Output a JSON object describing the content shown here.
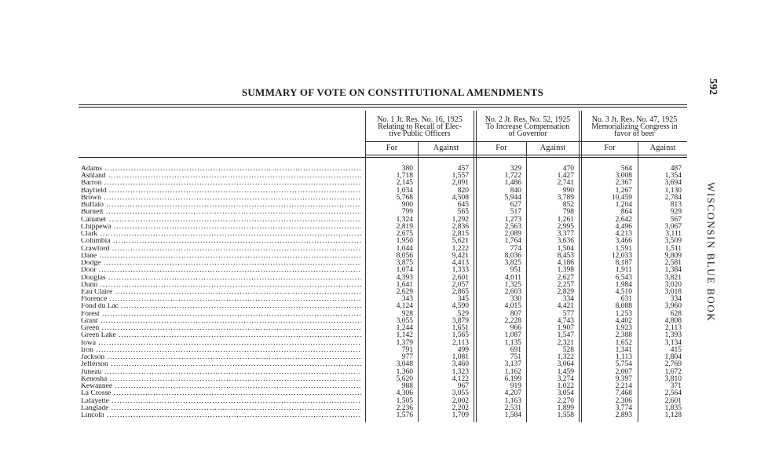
{
  "page": {
    "title": "SUMMARY OF VOTE ON CONSTITUTIONAL AMENDMENTS",
    "page_number": "592",
    "running_head": "WISCONSIN BLUE BOOK"
  },
  "table": {
    "groups": [
      {
        "lines": [
          "No. 1 Jt. Res. No. 16, 1925",
          "Relating to Recall of Elec-",
          "tive Public Officers"
        ]
      },
      {
        "lines": [
          "No. 2 Jt. Res. No. 52, 1925",
          "To Increase Compensation",
          "of Governor"
        ]
      },
      {
        "lines": [
          "No. 3 Jt. Res. No. 47, 1925",
          "Memorializing Congress in",
          "favor of beer"
        ]
      }
    ],
    "subheaders": [
      "For",
      "Against",
      "For",
      "Against",
      "For",
      "Against"
    ],
    "rows": [
      {
        "county": "Adams",
        "v": [
          "380",
          "457",
          "329",
          "470",
          "564",
          "487"
        ]
      },
      {
        "county": "Ashland",
        "v": [
          "1,718",
          "1,557",
          "1,722",
          "1,427",
          "3,008",
          "1,354"
        ]
      },
      {
        "county": "Barron",
        "v": [
          "2,145",
          "2,091",
          "1,486",
          "2,741",
          "2,367",
          "3,694"
        ]
      },
      {
        "county": "Bayfield",
        "v": [
          "1,034",
          "820",
          "840",
          "990",
          "1,267",
          "1,130"
        ]
      },
      {
        "county": "Brown",
        "v": [
          "5,768",
          "4,508",
          "5,944",
          "3,789",
          "10,459",
          "2,784"
        ]
      },
      {
        "county": "Buffalo",
        "v": [
          "900",
          "645",
          "627",
          "852",
          "1,204",
          "813"
        ]
      },
      {
        "county": "Burnett",
        "v": [
          "799",
          "565",
          "517",
          "798",
          "864",
          "929"
        ]
      },
      {
        "county": "Calumet",
        "v": [
          "1,324",
          "1,292",
          "1,273",
          "1,261",
          "2,642",
          "567"
        ]
      },
      {
        "county": "Chippewa",
        "v": [
          "2,819",
          "2,836",
          "2,563",
          "2,995",
          "4,496",
          "3,067"
        ]
      },
      {
        "county": "Clark",
        "v": [
          "2,675",
          "2,815",
          "2,089",
          "3,377",
          "4,213",
          "3,111"
        ]
      },
      {
        "county": "Columbia",
        "v": [
          "1,950",
          "5,621",
          "1,764",
          "3,636",
          "3,466",
          "3,509"
        ]
      },
      {
        "county": "Crawford",
        "v": [
          "1,044",
          "1,222",
          "774",
          "1,504",
          "1,591",
          "1,511"
        ]
      },
      {
        "county": "Dane",
        "v": [
          "8,056",
          "9,421",
          "8,036",
          "8,453",
          "12,033",
          "9,809"
        ]
      },
      {
        "county": "Dodge",
        "v": [
          "3,875",
          "4,413",
          "3,825",
          "4,186",
          "8,187",
          "2,581"
        ]
      },
      {
        "county": "Door",
        "v": [
          "1,074",
          "1,333",
          "951",
          "1,398",
          "1,911",
          "1,384"
        ]
      },
      {
        "county": "Douglas",
        "v": [
          "4,393",
          "2,601",
          "4,011",
          "2,627",
          "6,543",
          "3,821"
        ]
      },
      {
        "county": "Dunn",
        "v": [
          "1,641",
          "2,057",
          "1,325",
          "2,257",
          "1,984",
          "3,020"
        ]
      },
      {
        "county": "Eau Claire",
        "v": [
          "2,629",
          "2,865",
          "2,603",
          "2,829",
          "4,510",
          "3,018"
        ]
      },
      {
        "county": "Florence",
        "v": [
          "343",
          "345",
          "330",
          "334",
          "631",
          "334"
        ]
      },
      {
        "county": "Fond du Lac",
        "v": [
          "4,124",
          "4,590",
          "4,015",
          "4,421",
          "8,088",
          "3,960"
        ]
      },
      {
        "county": "Forest",
        "v": [
          "928",
          "529",
          "807",
          "577",
          "1,253",
          "628"
        ]
      },
      {
        "county": "Grant",
        "v": [
          "3,055",
          "3,879",
          "2,228",
          "4,743",
          "4,402",
          "4,808"
        ]
      },
      {
        "county": "Green",
        "v": [
          "1,244",
          "1,651",
          "966",
          "1,907",
          "1,923",
          "2,113"
        ]
      },
      {
        "county": "Green Lake",
        "v": [
          "1,142",
          "1,565",
          "1,087",
          "1,547",
          "2,388",
          "1,393"
        ]
      },
      {
        "county": "Iowa",
        "v": [
          "1,379",
          "2,113",
          "1,135",
          "2,321",
          "1,652",
          "3,134"
        ]
      },
      {
        "county": "Iron",
        "v": [
          "791",
          "499",
          "691",
          "528",
          "1,341",
          "415"
        ]
      },
      {
        "county": "Jackson",
        "v": [
          "977",
          "1,081",
          "751",
          "1,322",
          "1,113",
          "1,804"
        ]
      },
      {
        "county": "Jefferson",
        "v": [
          "3,048",
          "3,460",
          "3,137",
          "3,064",
          "5,754",
          "2,769"
        ]
      },
      {
        "county": "Juneau",
        "v": [
          "1,360",
          "1,323",
          "1,162",
          "1,459",
          "2,007",
          "1,672"
        ]
      },
      {
        "county": "Kenosha",
        "v": [
          "5,620",
          "4,122",
          "6,199",
          "3,274",
          "9,397",
          "3,810"
        ]
      },
      {
        "county": "Kewaunee",
        "v": [
          "988",
          "967",
          "919",
          "1,022",
          "2,214",
          "371"
        ]
      },
      {
        "county": "La Crosse",
        "v": [
          "4,306",
          "3,055",
          "4,207",
          "3,054",
          "7,468",
          "2,564"
        ]
      },
      {
        "county": "Lafayette",
        "v": [
          "1,505",
          "2,002",
          "1,163",
          "2,270",
          "2,306",
          "2,601"
        ]
      },
      {
        "county": "Langlade",
        "v": [
          "2,236",
          "2,202",
          "2,531",
          "1,899",
          "3,774",
          "1,835"
        ]
      },
      {
        "county": "Lincoln",
        "v": [
          "1,576",
          "1,709",
          "1,584",
          "1,558",
          "2,893",
          "1,128"
        ]
      }
    ]
  }
}
